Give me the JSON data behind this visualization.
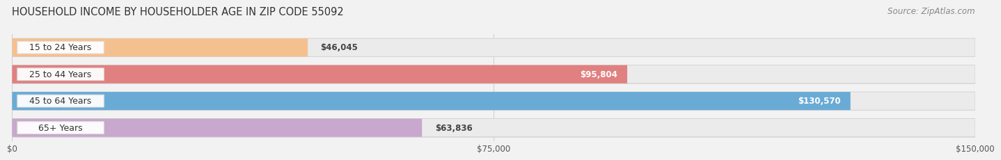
{
  "title": "HOUSEHOLD INCOME BY HOUSEHOLDER AGE IN ZIP CODE 55092",
  "source": "Source: ZipAtlas.com",
  "categories": [
    "15 to 24 Years",
    "25 to 44 Years",
    "45 to 64 Years",
    "65+ Years"
  ],
  "values": [
    46045,
    95804,
    130570,
    63836
  ],
  "bar_colors": [
    "#f5c090",
    "#e08080",
    "#6aabd6",
    "#c8a8cc"
  ],
  "value_labels": [
    "$46,045",
    "$95,804",
    "$130,570",
    "$63,836"
  ],
  "value_inside": [
    false,
    true,
    true,
    false
  ],
  "xlim_max": 150000,
  "x_ticks": [
    0,
    75000,
    150000
  ],
  "x_tick_labels": [
    "$0",
    "$75,000",
    "$150,000"
  ],
  "background_color": "#f2f2f2",
  "bar_bg_color": "#ebebeb",
  "title_fontsize": 10.5,
  "source_fontsize": 8.5,
  "label_fontsize": 9,
  "value_fontsize": 8.5,
  "tick_fontsize": 8.5
}
